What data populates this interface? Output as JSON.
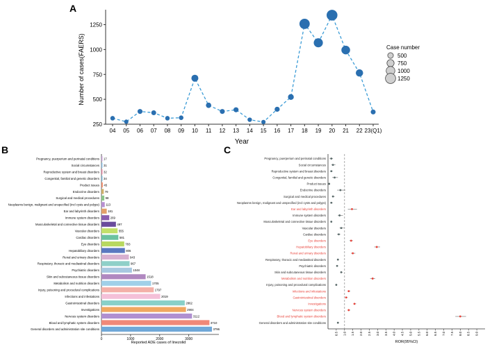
{
  "colors": {
    "line": "#3a9bd6",
    "point": "#2a6fb0",
    "axis": "#333333",
    "ror_red": "#e8433a",
    "ror_grey": "#5a6a6a",
    "ror_label_red": "#e8433a"
  },
  "panels": {
    "A": "A",
    "B": "B",
    "C": "C"
  },
  "chart_data": [
    {
      "panel": "A",
      "type": "scatter",
      "subtype": "line+bubble",
      "title": "",
      "xlabel": "Year",
      "ylabel": "Number of cases(FAERS)",
      "categories": [
        "04",
        "05",
        "06",
        "07",
        "08",
        "09",
        "10",
        "11",
        "12",
        "13",
        "14",
        "15",
        "16",
        "17",
        "18",
        "19",
        "20",
        "21",
        "22",
        "23(Q1)"
      ],
      "values": [
        310,
        275,
        378,
        365,
        310,
        315,
        712,
        440,
        378,
        395,
        295,
        272,
        400,
        523,
        1258,
        1068,
        1345,
        995,
        765,
        373
      ],
      "ylim": [
        250,
        1400
      ],
      "yticks": [
        250,
        500,
        750,
        1000,
        1250
      ],
      "legend": {
        "title": "Case number",
        "entries": [
          "500",
          "750",
          "1000",
          "1250"
        ],
        "values": [
          500,
          750,
          1000,
          1250
        ],
        "position": "right"
      }
    },
    {
      "panel": "B",
      "type": "bar",
      "orientation": "horizontal",
      "xlabel": "Reported ADE cases of linezolid",
      "ylabel": "",
      "xlim": [
        0,
        4000
      ],
      "xticks": [
        0,
        1000,
        2000,
        3000
      ],
      "categories": [
        "Pregnancy, puerperium and perinatal conditions",
        "Social circumstances",
        "Reproductive system and breast disorders",
        "Congenital, familial and genetic disorders",
        "Product issues",
        "Endocrine disorders",
        "Surgical and medical procedures",
        "Neoplasms benign, malignant and unspecified (incl cysts and polyps)",
        "Ear and labyrinth disorders",
        "Immune system disorders",
        "Musculoskeletal and connective tissue disorders",
        "Vascular disorders",
        "Cardiac disorders",
        "Eye disorders",
        "Hepatobiliary disorders",
        "Renal and urinary disorders",
        "Respiratory, thoracic and mediastinal disorders",
        "Psychiatric disorders",
        "Skin and subcutaneous tissue disorders",
        "Metabolism and nutrition disorders",
        "Injury, poisoning and procedural complications",
        "Infections and infestations",
        "Gastrointestinal disorders",
        "Investigations",
        "Nervous system disorders",
        "Blood and lymphatic system disorders",
        "General disorders and administration site conditions"
      ],
      "values": [
        17,
        31,
        32,
        34,
        45,
        79,
        98,
        113,
        181,
        269,
        497,
        555,
        581,
        783,
        806,
        943,
        967,
        1048,
        1518,
        1705,
        1797,
        2019,
        2862,
        2904,
        3112,
        3710,
        3796
      ],
      "value_labels": [
        "17",
        "31",
        "32",
        "34",
        "45",
        "79",
        "98",
        "113",
        "181",
        "269",
        "497",
        "555",
        "581",
        "783",
        "806",
        "943",
        "967",
        "1048",
        "1518",
        "1705",
        "1797",
        "2019",
        "2862",
        "2904",
        "3112",
        "3710",
        "3796"
      ],
      "bar_colors": [
        "#c9a3d8",
        "#8fc3e8",
        "#e88aa5",
        "#7fb8d6",
        "#f08c6a",
        "#cdb06a",
        "#8cc68b",
        "#b78fd1",
        "#e3a06a",
        "#8a5fb0",
        "#6a4c9c",
        "#c2e06a",
        "#6cc2a0",
        "#b8d860",
        "#5a78c0",
        "#d7b0d0",
        "#8fd0c8",
        "#a8c8e0",
        "#b088c0",
        "#a0d0e8",
        "#f3b0a8",
        "#f4c0d8",
        "#88d0c8",
        "#f0a860",
        "#b090d0",
        "#f08878",
        "#70a8d8"
      ]
    },
    {
      "panel": "C",
      "type": "scatter",
      "subtype": "forest",
      "xlabel": "ROR(95%CI)",
      "xlim": [
        0,
        9.5
      ],
      "xticks": [
        "0.5",
        "1.0",
        "1.5",
        "2.0",
        "2.5",
        "3.0",
        "3.5",
        "4.0",
        "4.5",
        "5.0",
        "5.5",
        "6.0",
        "6.5",
        "7.0",
        "7.5",
        "8.0",
        "8.5",
        "9.0"
      ],
      "reference_line": 1.0,
      "categories": [
        "Pregnancy, puerperium and perinatal conditions",
        "Social circumstances",
        "Reproductive system and breast disorders",
        "Congenital, familial and genetic disorders",
        "Product issues",
        "Endocrine disorders",
        "Surgical and medical procedures",
        "Neoplasms benign, malignant and unspecified (incl cysts and polyps)",
        "Ear and labyrinth disorders",
        "Immune system disorders",
        "Musculoskeletal and connective tissue disorders",
        "Vascular disorders",
        "Cardiac disorders",
        "Eye disorders",
        "Hepatobiliary disorders",
        "Renal and urinary disorders",
        "Respiratory, thoracic and mediastinal disorders",
        "Psychiatric disorders",
        "Skin and subcutaneous tissue disorders",
        "Metabolism and nutrition disorders",
        "Injury, poisoning and procedural complications",
        "Infections and infestations",
        "Gastrointestinal disorders",
        "Investigations",
        "Nervous system disorders",
        "Blood and lymphatic system disorders",
        "General disorders and administration site conditions"
      ],
      "highlighted": [
        false,
        false,
        false,
        false,
        false,
        false,
        false,
        false,
        true,
        false,
        false,
        false,
        false,
        true,
        true,
        true,
        false,
        false,
        false,
        true,
        false,
        true,
        true,
        true,
        true,
        true,
        false
      ],
      "ror": [
        0.2,
        0.3,
        0.2,
        0.4,
        0.07,
        0.75,
        0.3,
        0.2,
        1.45,
        0.7,
        0.2,
        0.8,
        0.65,
        1.4,
        2.95,
        1.5,
        0.6,
        0.55,
        0.8,
        2.7,
        0.5,
        1.25,
        1.1,
        1.6,
        1.25,
        8.0,
        0.6
      ],
      "ci_low": [
        0.1,
        0.2,
        0.15,
        0.25,
        0.05,
        0.55,
        0.25,
        0.15,
        1.2,
        0.6,
        0.15,
        0.7,
        0.55,
        1.3,
        2.8,
        1.4,
        0.55,
        0.5,
        0.75,
        2.55,
        0.45,
        1.2,
        1.05,
        1.55,
        1.2,
        7.7,
        0.55
      ],
      "ci_high": [
        0.3,
        0.45,
        0.28,
        0.6,
        0.1,
        1.05,
        0.4,
        0.28,
        1.75,
        0.9,
        0.25,
        0.95,
        0.75,
        1.5,
        3.15,
        1.65,
        0.65,
        0.6,
        0.88,
        2.85,
        0.55,
        1.35,
        1.18,
        1.7,
        1.35,
        8.35,
        0.65
      ]
    }
  ]
}
